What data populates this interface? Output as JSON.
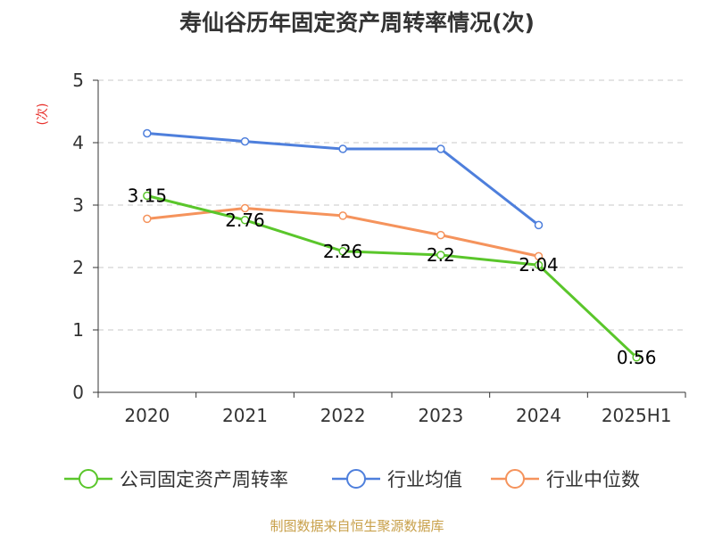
{
  "chart_data": {
    "type": "line",
    "title": "寿仙谷历年固定资产周转率情况(次)",
    "ylabel": "(次)",
    "xlabel": "",
    "categories": [
      "2020",
      "2021",
      "2022",
      "2023",
      "2024",
      "2025H1"
    ],
    "ylim": [
      0,
      5
    ],
    "yticks": [
      0,
      1,
      2,
      3,
      4,
      5
    ],
    "grid": true,
    "legend_position": "bottom",
    "series": [
      {
        "name": "公司固定资产周转率",
        "color": "#5ac62b",
        "values": [
          3.15,
          2.76,
          2.26,
          2.2,
          2.04,
          0.56
        ],
        "labels": [
          "3.15",
          "2.76",
          "2.26",
          "2.2",
          "2.04",
          "0.56"
        ]
      },
      {
        "name": "行业均值",
        "color": "#4e7fdc",
        "values": [
          4.15,
          4.02,
          3.9,
          3.9,
          2.68,
          null
        ]
      },
      {
        "name": "行业中位数",
        "color": "#f5935c",
        "values": [
          2.78,
          2.95,
          2.83,
          2.52,
          2.18,
          null
        ]
      }
    ]
  },
  "source": "制图数据来自恒生聚源数据库"
}
